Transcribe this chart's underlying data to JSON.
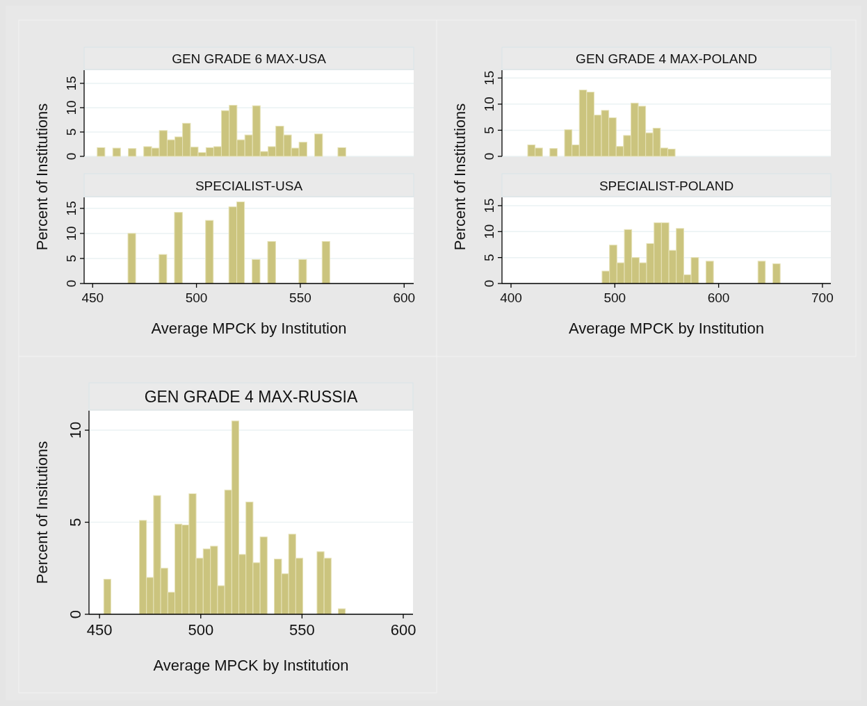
{
  "chart_data": [
    {
      "type": "histogram",
      "title": "GEN GRADE 6 MAX-USA",
      "ylabel": "Percent of Institutions",
      "color": "#cbc47e",
      "grid": "y",
      "tick_labels": "y",
      "xlim": [
        445.9,
        604.6
      ],
      "ylim": [
        0,
        17.7
      ],
      "yticks": [
        0,
        5,
        10,
        15
      ],
      "bins": [
        452.2,
        455.9,
        459.7,
        463.4,
        467.2,
        470.9,
        474.6,
        478.4,
        482.1,
        485.9,
        489.6,
        493.3,
        497.1,
        500.8,
        504.6,
        508.3,
        512.0,
        515.8,
        519.5,
        523.3,
        527.0,
        530.7,
        534.5,
        538.2,
        542.0,
        545.7,
        549.4,
        553.2,
        556.9,
        560.7,
        564.4,
        568.1,
        571.9
      ],
      "values": [
        1.8,
        0,
        1.7,
        0,
        1.6,
        0,
        2.0,
        1.7,
        5.3,
        3.4,
        4.0,
        6.8,
        1.9,
        0.8,
        1.8,
        2.0,
        9.4,
        10.5,
        3.4,
        4.4,
        10.4,
        1.0,
        2.0,
        6.2,
        4.4,
        1.7,
        2.9,
        0,
        4.6,
        0,
        0,
        1.8
      ]
    },
    {
      "type": "histogram",
      "title": "SPECIALIST-USA",
      "xlabel": "Average MPCK by Institution",
      "color": "#cbc47e",
      "grid": "y",
      "xlim": [
        445.9,
        604.6
      ],
      "xticks": [
        450,
        500,
        550,
        600
      ],
      "ylim": [
        0,
        17.2
      ],
      "yticks": [
        0,
        5,
        10,
        15
      ],
      "bins": [
        467.0,
        470.7,
        474.5,
        478.2,
        482.0,
        485.7,
        489.4,
        493.2,
        496.9,
        500.7,
        504.4,
        508.1,
        511.9,
        515.6,
        519.4,
        523.1,
        526.8,
        530.6,
        534.3,
        538.1,
        541.8,
        545.5,
        549.3,
        553.0,
        556.8,
        560.5,
        564.2
      ],
      "values": [
        10.0,
        0,
        0,
        0,
        5.8,
        0,
        14.2,
        0,
        0,
        0,
        12.6,
        0,
        0,
        15.3,
        16.3,
        0,
        4.8,
        0,
        8.4,
        0,
        0,
        0,
        4.8,
        0,
        0,
        8.4
      ]
    },
    {
      "type": "histogram",
      "title": "GEN GRADE 4 MAX-POLAND",
      "ylabel": "Percent of Institutions",
      "color": "#cbc47e",
      "grid": "y",
      "tick_labels": "y",
      "xlim": [
        391.3,
        708.1
      ],
      "ylim": [
        0,
        16.5
      ],
      "yticks": [
        0,
        5,
        10,
        15
      ],
      "bins": [
        416.1,
        423.2,
        430.3,
        437.4,
        444.5,
        451.6,
        458.7,
        465.8,
        472.9,
        480.0,
        487.1,
        494.2,
        501.3,
        508.4,
        515.5,
        522.6,
        529.7,
        536.8,
        543.9,
        551.0,
        558.1
      ],
      "values": [
        2.2,
        1.6,
        0,
        1.5,
        0,
        5.1,
        2.2,
        12.7,
        12.3,
        7.9,
        8.8,
        7.4,
        1.9,
        4.0,
        10.2,
        9.6,
        4.5,
        5.4,
        1.6,
        1.4
      ]
    },
    {
      "type": "histogram",
      "title": "SPECIALIST-POLAND",
      "xlabel": "Average MPCK by Institution",
      "color": "#cbc47e",
      "grid": "y",
      "xlim": [
        391.3,
        708.1
      ],
      "xticks": [
        400,
        500,
        600,
        700
      ],
      "ylim": [
        0,
        16.6
      ],
      "yticks": [
        0,
        5,
        10,
        15
      ],
      "bins": [
        487.7,
        494.9,
        502.0,
        509.2,
        516.3,
        523.5,
        530.6,
        537.8,
        544.9,
        552.1,
        559.2,
        566.4,
        573.5,
        580.7,
        587.8,
        595.0,
        602.1,
        609.3,
        616.4,
        623.6,
        630.7,
        637.9,
        645.0,
        652.2,
        659.3
      ],
      "values": [
        2.4,
        7.4,
        4.0,
        10.4,
        5.0,
        4.0,
        7.7,
        11.7,
        11.7,
        6.4,
        10.6,
        1.7,
        5.0,
        0,
        4.3,
        0,
        0,
        0,
        0,
        0,
        0,
        4.3,
        0,
        3.8
      ]
    },
    {
      "type": "histogram",
      "title": "GEN GRADE 4 MAX-RUSSIA",
      "xlabel": "Average MPCK by Institution",
      "ylabel": "Percent of Insitutions",
      "color": "#cbc47e",
      "grid": "y",
      "xlim": [
        444.8,
        604.8
      ],
      "xticks": [
        450,
        500,
        550,
        600
      ],
      "ylim": [
        0,
        11.06
      ],
      "yticks": [
        0,
        5,
        10
      ],
      "bins": [
        452.1,
        455.6,
        459.1,
        462.6,
        466.1,
        469.7,
        473.2,
        476.7,
        480.2,
        483.7,
        487.2,
        490.7,
        494.2,
        497.7,
        501.2,
        504.8,
        508.3,
        511.8,
        515.3,
        518.8,
        522.3,
        525.8,
        529.3,
        532.8,
        536.3,
        539.9,
        543.4,
        546.9,
        550.4,
        553.9,
        557.4,
        560.9,
        564.4,
        567.9,
        571.4
      ],
      "values": [
        1.9,
        0,
        0,
        0,
        0,
        5.1,
        2.0,
        6.45,
        2.5,
        1.2,
        4.9,
        4.85,
        6.55,
        3.05,
        3.55,
        3.7,
        1.55,
        6.75,
        10.5,
        3.25,
        6.1,
        2.8,
        4.2,
        0,
        3.0,
        2.2,
        4.35,
        3.05,
        0,
        0,
        3.4,
        3.05,
        0,
        0.3
      ]
    }
  ]
}
